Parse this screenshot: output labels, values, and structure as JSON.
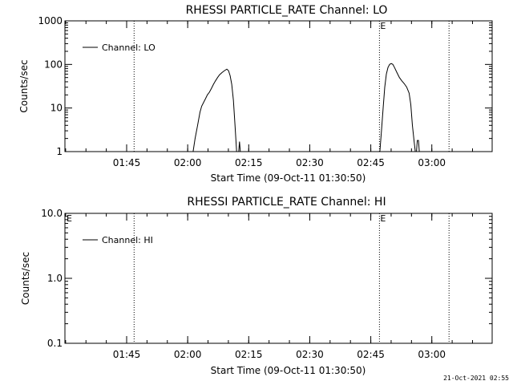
{
  "chart_data": [
    {
      "type": "line",
      "title": "RHESSI PARTICLE_RATE Channel: LO",
      "xlabel": "Start Time (09-Oct-11 01:30:50)",
      "ylabel": "Counts/sec",
      "yscale": "log",
      "ylim": [
        1,
        1000
      ],
      "yticks": [
        {
          "value": 1,
          "label": "1"
        },
        {
          "value": 10,
          "label": "10"
        },
        {
          "value": 100,
          "label": "100"
        },
        {
          "value": 1000,
          "label": "1000"
        }
      ],
      "xlim_minutes": [
        0,
        105
      ],
      "xticks": [
        {
          "minutes": 15.17,
          "label": "01:45"
        },
        {
          "minutes": 30.17,
          "label": "02:00"
        },
        {
          "minutes": 45.17,
          "label": "02:15"
        },
        {
          "minutes": 60.17,
          "label": "02:30"
        },
        {
          "minutes": 75.17,
          "label": "02:45"
        },
        {
          "minutes": 90.17,
          "label": "03:00"
        }
      ],
      "legend": {
        "label": "Channel: LO",
        "position": "top-left"
      },
      "markers": [
        {
          "minutes": 17.0,
          "label": ""
        },
        {
          "minutes": 77.3,
          "label": "E"
        },
        {
          "minutes": 94.4,
          "label": ""
        }
      ],
      "grid": false,
      "series": [
        {
          "segments": [
            [
              [
                31.5,
                1
              ],
              [
                32.0,
                2
              ],
              [
                32.6,
                4
              ],
              [
                33.2,
                8
              ],
              [
                33.6,
                11
              ],
              [
                34.0,
                13
              ],
              [
                34.5,
                16
              ],
              [
                35.0,
                20
              ],
              [
                35.5,
                23
              ],
              [
                36.0,
                28
              ],
              [
                36.5,
                35
              ],
              [
                37.0,
                42
              ],
              [
                37.5,
                50
              ],
              [
                38.0,
                58
              ],
              [
                38.6,
                65
              ],
              [
                39.2,
                72
              ],
              [
                39.8,
                78
              ],
              [
                40.2,
                72
              ],
              [
                40.6,
                55
              ],
              [
                41.0,
                35
              ],
              [
                41.4,
                15
              ],
              [
                41.8,
                4
              ],
              [
                42.2,
                1
              ]
            ],
            [
              [
                42.7,
                1
              ],
              [
                42.9,
                1.7
              ],
              [
                43.1,
                1
              ]
            ],
            [
              [
                77.4,
                1
              ],
              [
                77.8,
                3
              ],
              [
                78.2,
                10
              ],
              [
                78.6,
                30
              ],
              [
                79.0,
                60
              ],
              [
                79.4,
                85
              ],
              [
                79.8,
                100
              ],
              [
                80.2,
                105
              ],
              [
                80.6,
                100
              ],
              [
                81.0,
                85
              ],
              [
                81.6,
                65
              ],
              [
                82.2,
                50
              ],
              [
                82.8,
                42
              ],
              [
                83.4,
                36
              ],
              [
                84.0,
                30
              ],
              [
                84.6,
                22
              ],
              [
                85.0,
                12
              ],
              [
                85.4,
                4
              ],
              [
                85.8,
                1.8
              ],
              [
                86.1,
                1
              ]
            ],
            [
              [
                86.4,
                1
              ],
              [
                86.6,
                1.8
              ],
              [
                86.9,
                1.8
              ],
              [
                87.1,
                1
              ]
            ]
          ]
        }
      ]
    },
    {
      "type": "line",
      "title": "RHESSI PARTICLE_RATE Channel: HI",
      "xlabel": "Start Time (09-Oct-11 01:30:50)",
      "ylabel": "Counts/sec",
      "yscale": "log",
      "ylim": [
        0.1,
        10
      ],
      "yticks": [
        {
          "value": 0.1,
          "label": "0.1"
        },
        {
          "value": 1,
          "label": "1.0"
        },
        {
          "value": 10,
          "label": "10.0"
        }
      ],
      "xlim_minutes": [
        0,
        105
      ],
      "xticks": [
        {
          "minutes": 15.17,
          "label": "01:45"
        },
        {
          "minutes": 30.17,
          "label": "02:00"
        },
        {
          "minutes": 45.17,
          "label": "02:15"
        },
        {
          "minutes": 60.17,
          "label": "02:30"
        },
        {
          "minutes": 75.17,
          "label": "02:45"
        },
        {
          "minutes": 90.17,
          "label": "03:00"
        }
      ],
      "legend": {
        "label": "Channel: HI",
        "position": "top-left"
      },
      "markers": [
        {
          "minutes": 17.0,
          "label": ""
        },
        {
          "minutes": 77.3,
          "label": "E"
        },
        {
          "minutes": 94.4,
          "label": ""
        }
      ],
      "corner_label": "E",
      "grid": false,
      "series": [
        {
          "segments": []
        }
      ]
    }
  ],
  "footer": {
    "timestamp": "21-Oct-2021 02:55"
  }
}
